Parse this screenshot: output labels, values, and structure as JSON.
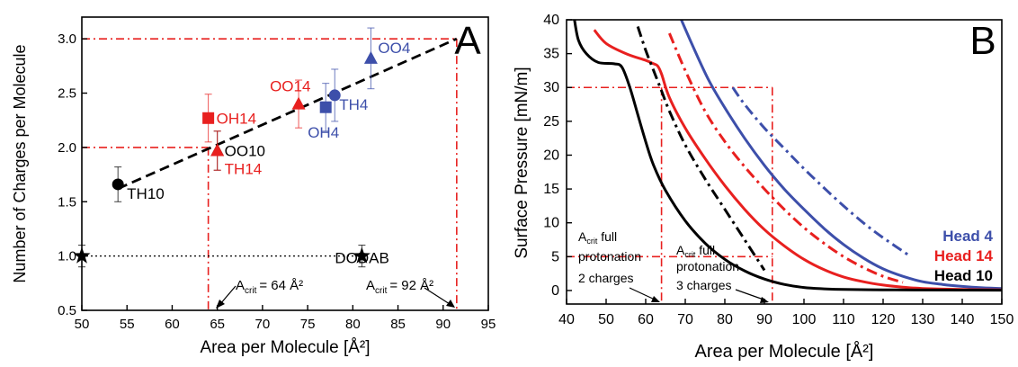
{
  "chart_data": [
    {
      "panel": "A",
      "type": "scatter",
      "xlabel": "Area per Molecule [Å²]",
      "ylabel": "Number of Charges per Molecule",
      "xlim": [
        50,
        95
      ],
      "ylim": [
        0.5,
        3.2
      ],
      "x_ticks": [
        50,
        55,
        60,
        65,
        70,
        75,
        80,
        85,
        90,
        95
      ],
      "y_ticks": [
        0.5,
        1.0,
        1.5,
        2.0,
        2.5,
        3.0
      ],
      "points": [
        {
          "label": "TH10",
          "x": 54,
          "y": 1.66,
          "err": 0.16,
          "shape": "circle",
          "color": "#000000"
        },
        {
          "label": "OO10",
          "x": 65,
          "y": 1.97,
          "err": 0.18,
          "shape": "triangle",
          "color": "#000000"
        },
        {
          "label": "TH14",
          "x": 65,
          "y": 1.97,
          "err": 0.18,
          "shape": "triangle",
          "color": "#e8201f"
        },
        {
          "label": "OH14",
          "x": 64,
          "y": 2.27,
          "err": 0.22,
          "shape": "square",
          "color": "#e8201f"
        },
        {
          "label": "OO14",
          "x": 74,
          "y": 2.4,
          "err": 0.22,
          "shape": "triangle",
          "color": "#e8201f"
        },
        {
          "label": "OH4",
          "x": 77,
          "y": 2.37,
          "err": 0.22,
          "shape": "square",
          "color": "#3d4faa"
        },
        {
          "label": "TH4",
          "x": 78,
          "y": 2.48,
          "err": 0.24,
          "shape": "circle",
          "color": "#3d4faa"
        },
        {
          "label": "OO4",
          "x": 82,
          "y": 2.82,
          "err": 0.28,
          "shape": "triangle",
          "color": "#3d4faa"
        },
        {
          "label": "",
          "x": 50,
          "y": 1.0,
          "err": 0.1,
          "shape": "star",
          "color": "#000000"
        },
        {
          "label": "DODAB",
          "x": 81,
          "y": 1.0,
          "err": 0.1,
          "shape": "star",
          "color": "#000000"
        }
      ],
      "fit_line": {
        "x": [
          54,
          91.5
        ],
        "y": [
          1.62,
          3.0
        ]
      },
      "reference_lines": {
        "y_values": [
          2.0,
          3.0
        ],
        "x_values": [
          64,
          91.5
        ],
        "dodab_level": 1.0
      },
      "annotations": {
        "panel_letter": "A",
        "acrit_64": {
          "prefix": "A",
          "sub": "crit",
          "text": "= 64 Å²"
        },
        "acrit_92": {
          "prefix": "A",
          "sub": "crit",
          "text": "= 92 Å²"
        }
      }
    },
    {
      "panel": "B",
      "type": "line",
      "xlabel": "Area per Molecule [Å²]",
      "ylabel": "Surface Pressure [mN/m]",
      "xlim": [
        40,
        150
      ],
      "ylim": [
        -2,
        40
      ],
      "x_ticks": [
        40,
        50,
        60,
        70,
        80,
        90,
        100,
        110,
        120,
        130,
        140,
        150
      ],
      "y_ticks": [
        0,
        5,
        10,
        15,
        20,
        25,
        30,
        35,
        40
      ],
      "series": [
        {
          "name": "Head 4",
          "color": "#3d4faa",
          "dash": "solid",
          "x": [
            69,
            72,
            76,
            80,
            85,
            90,
            95,
            100,
            105,
            110,
            115,
            120,
            125,
            130,
            135,
            140,
            145,
            150
          ],
          "y": [
            40,
            36,
            31,
            27,
            22.5,
            18.5,
            15,
            12,
            9.2,
            6.8,
            4.8,
            3.2,
            2.1,
            1.3,
            0.9,
            0.6,
            0.4,
            0.3
          ]
        },
        {
          "name": "",
          "color": "#3d4faa",
          "dash": "dashdot",
          "x": [
            82,
            85,
            90,
            95,
            100,
            105,
            110,
            115,
            120,
            127
          ],
          "y": [
            30,
            27.5,
            24,
            21,
            18,
            15.2,
            12.5,
            10,
            7.8,
            5
          ]
        },
        {
          "name": "Head 14",
          "color": "#e8201f",
          "dash": "solid",
          "x": [
            47,
            50,
            55,
            60,
            62,
            63,
            64,
            66,
            70,
            75,
            80,
            85,
            90,
            95,
            100,
            105,
            110,
            115,
            120,
            125,
            130,
            140,
            150
          ],
          "y": [
            38.5,
            36.5,
            35,
            34,
            33.5,
            33.2,
            32,
            28.5,
            24,
            19.5,
            15.5,
            12,
            9,
            6.6,
            4.6,
            3.1,
            2.0,
            1.3,
            0.8,
            0.5,
            0.3,
            0.15,
            0.1
          ]
        },
        {
          "name": "",
          "color": "#e8201f",
          "dash": "dashdot",
          "x": [
            66,
            70,
            75,
            80,
            85,
            90,
            95,
            100,
            105,
            110,
            115,
            120,
            125
          ],
          "y": [
            38,
            32.5,
            26.5,
            22,
            18.3,
            15,
            12,
            9.3,
            7,
            5,
            3.4,
            2.1,
            1.2
          ]
        },
        {
          "name": "Head 10",
          "color": "#000000",
          "dash": "solid",
          "x": [
            42,
            43,
            45,
            48,
            52,
            54,
            56,
            58,
            60,
            62,
            65,
            70,
            75,
            80,
            85,
            90,
            95,
            100,
            105,
            110,
            120,
            130,
            150
          ],
          "y": [
            40,
            37,
            35,
            33.7,
            33.5,
            33,
            30,
            26,
            22,
            18.5,
            14.8,
            10.3,
            7,
            4.6,
            2.9,
            1.7,
            0.9,
            0.45,
            0.25,
            0.15,
            0.1,
            0.08,
            0.05
          ]
        },
        {
          "name": "",
          "color": "#000000",
          "dash": "dashdot",
          "x": [
            58,
            60,
            62,
            64,
            66,
            70,
            75,
            80,
            85,
            90
          ],
          "y": [
            39,
            35.5,
            32.5,
            29.5,
            26.5,
            21.5,
            16.5,
            12,
            7.5,
            3
          ]
        }
      ],
      "reference_lines": {
        "x_values": [
          64,
          92
        ],
        "y_values": [
          30,
          5
        ]
      },
      "legend": {
        "placement": "right",
        "entries": [
          "Head 4",
          "Head 14",
          "Head 10"
        ]
      },
      "annotations": {
        "panel_letter": "B",
        "box_left": {
          "line1_prefix": "A",
          "line1_sub": "crit",
          "line1_text": " full",
          "line2": "protonation",
          "line3": "2 charges"
        },
        "box_right": {
          "line1_prefix": "A",
          "line1_sub": "crit",
          "line1_text": " full",
          "line2": "protonation",
          "line3": "3 charges"
        }
      }
    }
  ]
}
